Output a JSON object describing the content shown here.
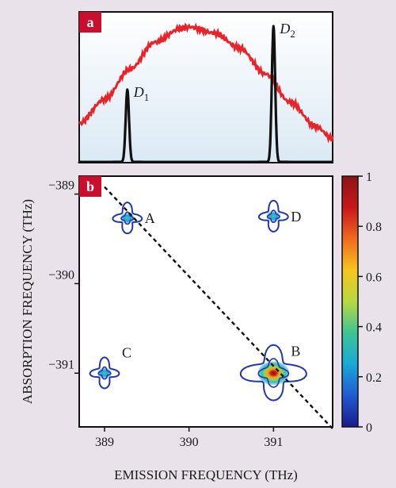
{
  "chart_data": [
    {
      "panel_label": "a",
      "type": "line",
      "series": [
        {
          "name": "",
          "color": "#e8232a",
          "kind": "broadband spectrum",
          "x": [
            388.7,
            389.0,
            389.3,
            389.6,
            389.9,
            390.0,
            390.3,
            390.6,
            390.9,
            391.2,
            391.5,
            391.7
          ],
          "y": [
            0.26,
            0.42,
            0.62,
            0.8,
            0.89,
            0.9,
            0.86,
            0.76,
            0.59,
            0.4,
            0.24,
            0.16
          ]
        },
        {
          "name": "",
          "color": "#111111",
          "kind": "narrow emission peaks",
          "peaks": [
            {
              "label": "D",
              "subscript": "1",
              "center": 389.27,
              "height": 0.48
            },
            {
              "label": "D",
              "subscript": "2",
              "center": 391.0,
              "height": 0.9
            }
          ]
        }
      ],
      "xlim": [
        388.7,
        391.7
      ],
      "ylim": [
        0,
        1
      ],
      "background_gradient": [
        "#ffffff",
        "#dbe9f4"
      ]
    },
    {
      "panel_label": "b",
      "type": "heatmap",
      "xlabel": "EMISSION FREQUENCY (THz)",
      "ylabel": "ABSORPTION FREQUENCY (THz)",
      "xlim": [
        388.7,
        391.7
      ],
      "ylim": [
        -391.6,
        -388.8
      ],
      "x_ticks": [
        389,
        390,
        391
      ],
      "x_tick_labels": [
        "389",
        "390",
        "391"
      ],
      "y_ticks": [
        -389,
        -390,
        -391
      ],
      "y_tick_labels": [
        "−389",
        "−390",
        "−391"
      ],
      "peaks": [
        {
          "label": "A",
          "x": 389.27,
          "y": -389.27,
          "intensity": 0.25
        },
        {
          "label": "B",
          "x": 391.0,
          "y": -391.0,
          "intensity": 1.0
        },
        {
          "label": "C",
          "x": 389.0,
          "y": -391.0,
          "intensity": 0.25
        },
        {
          "label": "D",
          "x": 391.0,
          "y": -389.25,
          "intensity": 0.25
        }
      ],
      "diagonal": {
        "x": [
          389.0,
          391.7
        ],
        "y": [
          -388.92,
          -391.62
        ],
        "style": "dashed"
      },
      "contour_color": "#2437a8",
      "colorbar": {
        "ticks": [
          0,
          0.2,
          0.4,
          0.6,
          0.8,
          1
        ],
        "tick_labels": [
          "0",
          "0.2",
          "0.4",
          "0.6",
          "0.8",
          "1"
        ],
        "colors": [
          "#1a1a8c",
          "#1f5bd1",
          "#19a9d6",
          "#3cc494",
          "#b8d840",
          "#f5c61e",
          "#ee6a1e",
          "#c8171b",
          "#8a1515"
        ]
      }
    }
  ]
}
